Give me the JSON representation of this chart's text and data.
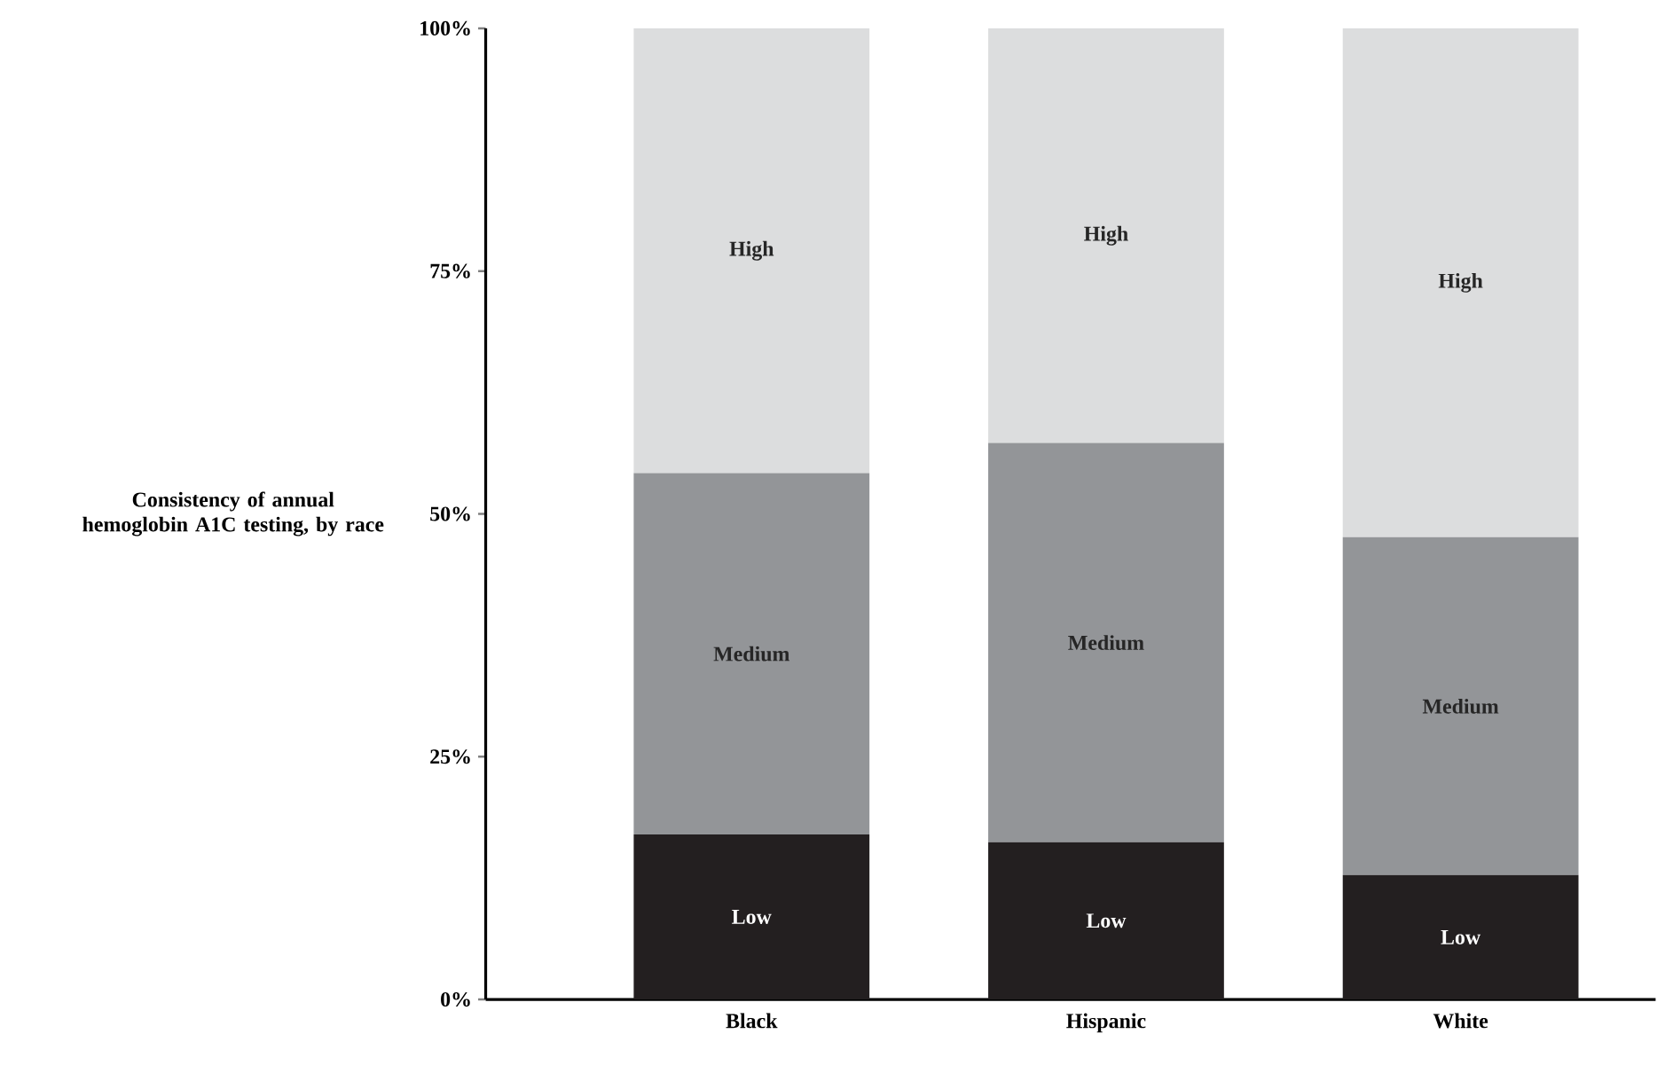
{
  "chart_data": {
    "type": "bar",
    "stacked": true,
    "ylabel": "Consistency of annual hemoglobin A1C testing, by race",
    "categories": [
      "Black",
      "Hispanic",
      "White"
    ],
    "series": [
      {
        "name": "Low",
        "color": "#231f20",
        "values": [
          17.0,
          16.2,
          12.8
        ]
      },
      {
        "name": "Medium",
        "color": "#939598",
        "values": [
          37.2,
          41.1,
          34.8
        ]
      },
      {
        "name": "High",
        "color": "#dcddde",
        "values": [
          45.8,
          42.7,
          52.4
        ]
      }
    ],
    "ylim": [
      0,
      100
    ],
    "yticks": [
      {
        "value": 0,
        "label": "0%"
      },
      {
        "value": 25,
        "label": "25%"
      },
      {
        "value": 50,
        "label": "50%"
      },
      {
        "value": 75,
        "label": "75%"
      },
      {
        "value": 100,
        "label": "100%"
      }
    ],
    "grid": false
  }
}
